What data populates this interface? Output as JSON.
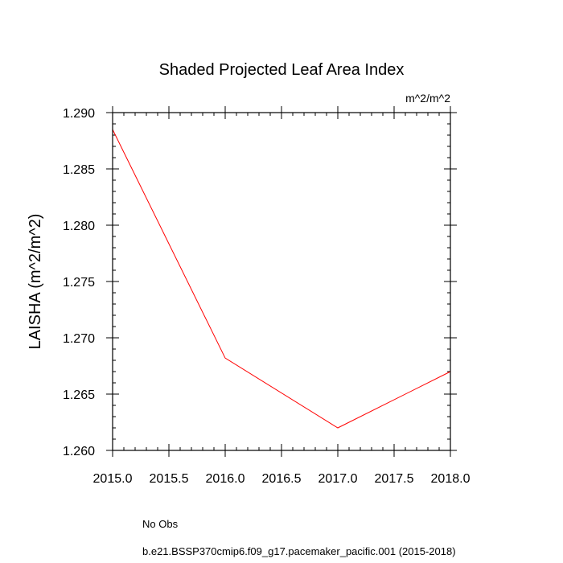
{
  "chart_data": {
    "type": "line",
    "title": "Shaded Projected Leaf Area Index",
    "units_label": "m^2/m^2",
    "ylabel": "LAISHA  (m^2/m^2)",
    "xlabel": "",
    "xlim": [
      2015.0,
      2018.0
    ],
    "ylim": [
      1.26,
      1.29
    ],
    "xticks": [
      2015.0,
      2015.5,
      2016.0,
      2016.5,
      2017.0,
      2017.5,
      2018.0
    ],
    "xtick_labels": [
      "2015.0",
      "2015.5",
      "2016.0",
      "2016.5",
      "2017.0",
      "2017.5",
      "2018.0"
    ],
    "yticks": [
      1.26,
      1.265,
      1.27,
      1.275,
      1.28,
      1.285,
      1.29
    ],
    "ytick_labels": [
      "1.260",
      "1.265",
      "1.270",
      "1.275",
      "1.280",
      "1.285",
      "1.290"
    ],
    "grid": false,
    "legend_placement": "bottom",
    "series": [
      {
        "name": "b.e21.BSSP370cmip6.f09_g17.pacemaker_pacific.001 (2015-2018)",
        "x": [
          2015.0,
          2016.0,
          2017.0,
          2018.0
        ],
        "y": [
          1.2885,
          1.2682,
          1.262,
          1.267
        ],
        "color": "#ff0000",
        "style": "solid"
      }
    ],
    "legend": [
      {
        "name": "No Obs",
        "color": "#9999ff",
        "style": "dashed"
      },
      {
        "name": "b.e21.BSSP370cmip6.f09_g17.pacemaker_pacific.001 (2015-2018)",
        "color": "#ff0000",
        "style": "solid"
      }
    ]
  }
}
